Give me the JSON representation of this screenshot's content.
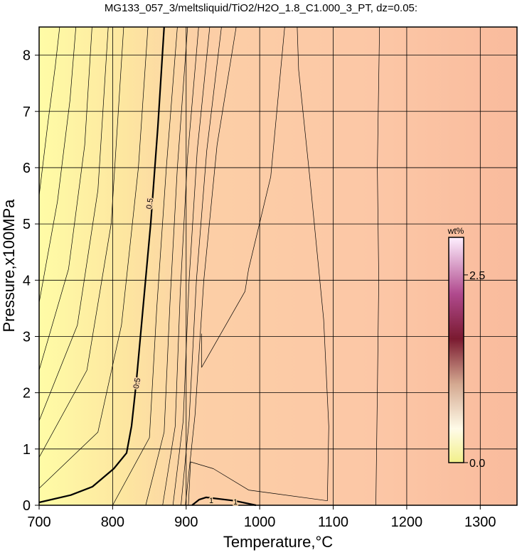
{
  "chart_data": {
    "type": "contour",
    "title": "MG133_057_3/meltsliquid/TiO2/H2O_1.8_C1.000_3_PT, dz=0.05:",
    "xlabel": "Temperature,°C",
    "ylabel": "Pressure,x100MPa",
    "xlim": [
      700,
      1350
    ],
    "ylim": [
      0,
      8.5
    ],
    "xticks": [
      700,
      800,
      900,
      1000,
      1100,
      1200,
      1300
    ],
    "yticks": [
      0,
      1,
      2,
      3,
      4,
      5,
      6,
      7,
      8
    ],
    "grid": true,
    "colorbar": {
      "label": "wt%",
      "lim": [
        0,
        3.0
      ],
      "ticks": [
        {
          "value": 0,
          "label": "0.0"
        },
        {
          "value": 2.5,
          "label": "2.5"
        }
      ]
    },
    "contours": [
      {
        "level": 0.5,
        "x": [
          700,
          743,
          772.5,
          801.6,
          819,
          825.7,
          832,
          840,
          851.9,
          861.5,
          870
        ],
        "y": [
          0.05,
          0.18,
          0.33,
          0.65,
          0.93,
          1.41,
          2.17,
          3.31,
          5.02,
          6.73,
          8.5
        ]
      },
      {
        "level": 1,
        "x": [
          908,
          917.6,
          927,
          966,
          995
        ],
        "y": [
          0,
          0.1,
          0.14,
          0.08,
          0
        ]
      },
      {
        "x": [
          700,
          712,
          722,
          728
        ],
        "y": [
          5.5,
          6.8,
          7.8,
          8.5
        ]
      },
      {
        "x": [
          700,
          725,
          742,
          750
        ],
        "y": [
          3.6,
          5.4,
          7.2,
          8.5
        ]
      },
      {
        "x": [
          700,
          740,
          762,
          772
        ],
        "y": [
          2.4,
          4.2,
          6.4,
          8.5
        ]
      },
      {
        "x": [
          700,
          752,
          780,
          794
        ],
        "y": [
          1.5,
          3.2,
          5.6,
          8.5
        ]
      },
      {
        "x": [
          700,
          765,
          798,
          815
        ],
        "y": [
          0.85,
          2.4,
          5.0,
          8.5
        ]
      },
      {
        "x": [
          700,
          780,
          812,
          835,
          848
        ],
        "y": [
          0.3,
          1.3,
          3.2,
          6.0,
          8.5
        ]
      },
      {
        "x": [
          800,
          850,
          860,
          873,
          888
        ],
        "y": [
          0,
          1.2,
          3.5,
          6.0,
          8.5
        ]
      },
      {
        "x": [
          845,
          870,
          878,
          888,
          902
        ],
        "y": [
          0,
          1.3,
          3.6,
          6.0,
          8.5
        ]
      },
      {
        "x": [
          868,
          885,
          892,
          902,
          917
        ],
        "y": [
          0,
          1.4,
          3.8,
          6.2,
          8.5
        ]
      },
      {
        "x": [
          882,
          896,
          904,
          915,
          932
        ],
        "y": [
          0,
          1.5,
          4.0,
          6.3,
          8.5
        ]
      },
      {
        "x": [
          893,
          904,
          914,
          928,
          948
        ],
        "y": [
          0,
          1.5,
          4.0,
          6.3,
          8.5
        ]
      },
      {
        "x": [
          899,
          912,
          924,
          942,
          968
        ],
        "y": [
          0,
          1.6,
          4.0,
          6.4,
          8.5
        ]
      },
      {
        "x": [
          903,
          906,
          937,
          985,
          1092,
          1094,
          1087,
          1068,
          1053,
          1051
        ],
        "y": [
          0,
          0.77,
          0.65,
          0.27,
          0.08,
          1.4,
          3.3,
          5.84,
          7.74,
          8.5
        ]
      },
      {
        "x": [
          1034,
          1015,
          985,
          980,
          921,
          921
        ],
        "y": [
          8.5,
          5.84,
          4.2,
          3.8,
          2.45,
          3.05
        ]
      },
      {
        "x": [
          1158,
          1160,
          1162,
          1160,
          1163
        ],
        "y": [
          0,
          2,
          4,
          6,
          8.5
        ]
      }
    ]
  }
}
